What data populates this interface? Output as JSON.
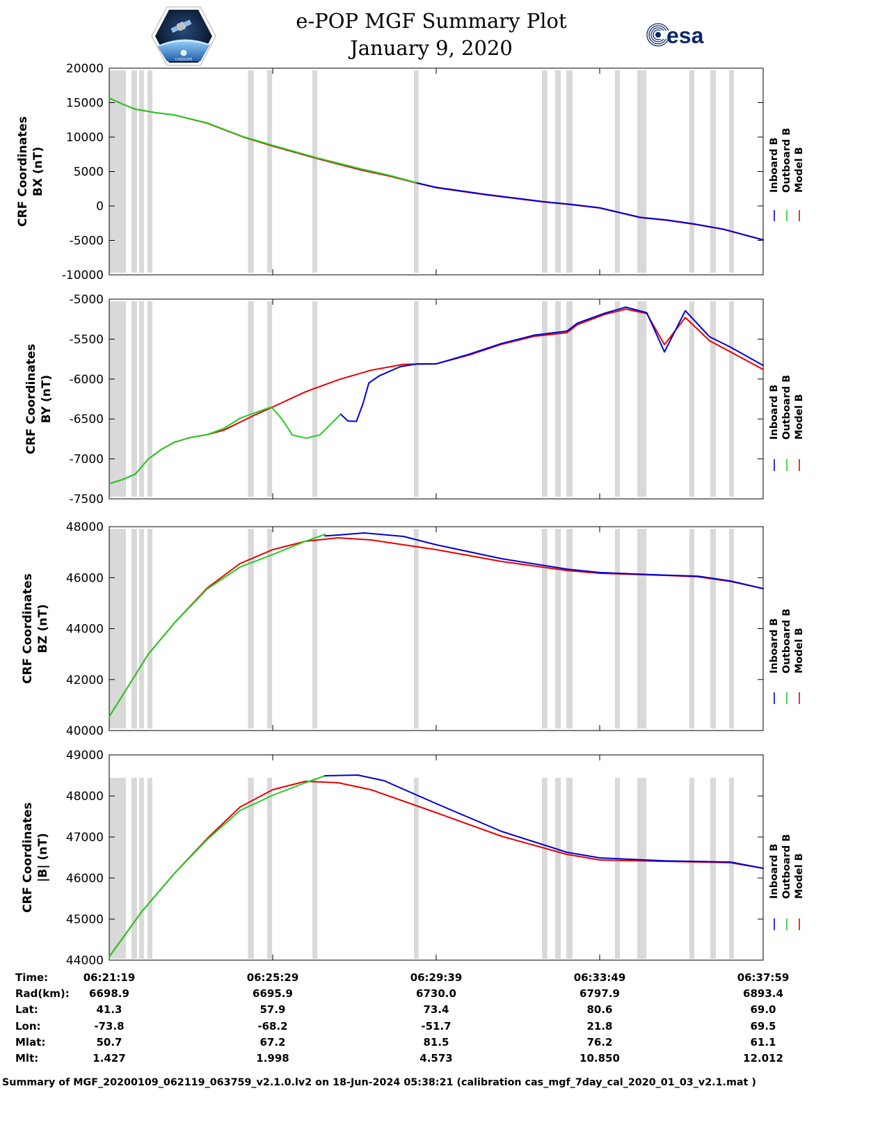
{
  "title": {
    "line1": "e-POP MGF Summary Plot",
    "line2": "January 9, 2020"
  },
  "logos": {
    "left": {
      "name": "cassiope-mission-patch",
      "lettering": "CASSIOPE"
    },
    "right": {
      "name": "esa-logo",
      "lettering": "esa"
    }
  },
  "colors": {
    "inboard": "#0000d4",
    "outboard": "#22cc22",
    "model": "#e80000",
    "gap": "#d9d9d9"
  },
  "chart_data": {
    "type": "line",
    "x_unit": "seconds since 06:21:19",
    "x_range": [
      0,
      1000
    ],
    "x_ticks": [
      0,
      250,
      500,
      750,
      1000
    ],
    "x_tick_labels": [
      "06:21:19",
      "06:25:29",
      "06:29:39",
      "06:33:49",
      "06:37:59"
    ],
    "legend": [
      {
        "key": "inboard",
        "label": "Inboard B"
      },
      {
        "key": "outboard",
        "label": "Outboard B"
      },
      {
        "key": "model",
        "label": "Model B"
      }
    ],
    "gaps": [
      [
        0,
        25.5
      ],
      [
        34,
        42.5
      ],
      [
        45.7,
        53
      ],
      [
        58.5,
        66
      ],
      [
        212,
        221
      ],
      [
        241.5,
        249
      ],
      [
        310.6,
        318
      ],
      [
        466,
        473
      ],
      [
        661.7,
        670
      ],
      [
        682,
        690.4
      ],
      [
        699,
        708.5
      ],
      [
        773.4,
        781
      ],
      [
        807.4,
        821.3
      ],
      [
        887,
        894.7
      ],
      [
        919,
        927.6
      ],
      [
        948,
        955.3
      ]
    ],
    "panels": [
      {
        "id": "bx",
        "ylabel": [
          "CRF Coordinates",
          "BX (nT)"
        ],
        "ylim": [
          -10000,
          20000
        ],
        "yticks": [
          -10000,
          -5000,
          0,
          5000,
          10000,
          15000,
          20000
        ],
        "series": {
          "model": [
            [
              0,
              15650
            ],
            [
              20,
              14800
            ],
            [
              40,
              14050
            ],
            [
              70,
              13550
            ],
            [
              100,
              13200
            ],
            [
              150,
              12000
            ],
            [
              205,
              10000
            ],
            [
              250,
              8700
            ],
            [
              317,
              6900
            ],
            [
              386,
              5200
            ],
            [
              430,
              4300
            ],
            [
              471,
              3300
            ],
            [
              500,
              2650
            ],
            [
              578,
              1600
            ],
            [
              663,
              600
            ],
            [
              705,
              200
            ],
            [
              750,
              -300
            ],
            [
              812,
              -1700
            ],
            [
              854,
              -2100
            ],
            [
              897,
              -2700
            ],
            [
              939,
              -3400
            ],
            [
              1000,
              -4950
            ]
          ],
          "outboard": [
            [
              0,
              15650
            ],
            [
              20,
              14800
            ],
            [
              40,
              14050
            ],
            [
              70,
              13550
            ],
            [
              100,
              13200
            ],
            [
              150,
              12050
            ],
            [
              205,
              10050
            ],
            [
              250,
              8800
            ],
            [
              317,
              7000
            ],
            [
              386,
              5350
            ],
            [
              430,
              4400
            ],
            [
              471,
              3350
            ]
          ],
          "inboard": [
            [
              471,
              3330
            ],
            [
              500,
              2700
            ],
            [
              578,
              1640
            ],
            [
              663,
              640
            ],
            [
              705,
              240
            ],
            [
              750,
              -260
            ],
            [
              812,
              -1660
            ],
            [
              854,
              -2060
            ],
            [
              897,
              -2660
            ],
            [
              939,
              -3360
            ],
            [
              1000,
              -4920
            ]
          ]
        }
      },
      {
        "id": "by",
        "ylabel": [
          "CRF Coordinates",
          "BY (nT)"
        ],
        "ylim": [
          -7500,
          -5000
        ],
        "yticks": [
          -7500,
          -7000,
          -6500,
          -6000,
          -5500,
          -5000
        ],
        "series": {
          "model": [
            [
              0,
              -7310
            ],
            [
              20,
              -7260
            ],
            [
              40,
              -7190
            ],
            [
              60,
              -7000
            ],
            [
              80,
              -6880
            ],
            [
              100,
              -6790
            ],
            [
              125,
              -6730
            ],
            [
              150,
              -6695
            ],
            [
              175,
              -6640
            ],
            [
              220,
              -6460
            ],
            [
              250,
              -6350
            ],
            [
              300,
              -6160
            ],
            [
              350,
              -6010
            ],
            [
              400,
              -5890
            ],
            [
              450,
              -5815
            ],
            [
              500,
              -5810
            ],
            [
              550,
              -5700
            ],
            [
              600,
              -5565
            ],
            [
              650,
              -5465
            ],
            [
              700,
              -5420
            ],
            [
              716,
              -5320
            ],
            [
              758,
              -5190
            ],
            [
              790,
              -5125
            ],
            [
              822,
              -5180
            ],
            [
              849,
              -5570
            ],
            [
              881,
              -5230
            ],
            [
              918,
              -5520
            ],
            [
              950,
              -5660
            ],
            [
              1000,
              -5880
            ]
          ],
          "outboard": [
            [
              0,
              -7310
            ],
            [
              20,
              -7260
            ],
            [
              40,
              -7190
            ],
            [
              60,
              -7000
            ],
            [
              80,
              -6880
            ],
            [
              100,
              -6790
            ],
            [
              125,
              -6730
            ],
            [
              150,
              -6695
            ],
            [
              175,
              -6620
            ],
            [
              200,
              -6490
            ],
            [
              227,
              -6410
            ],
            [
              248,
              -6350
            ],
            [
              264,
              -6500
            ],
            [
              280,
              -6700
            ],
            [
              301,
              -6740
            ],
            [
              322,
              -6700
            ],
            [
              338,
              -6570
            ],
            [
              354,
              -6440
            ]
          ],
          "inboard": [
            [
              354,
              -6440
            ],
            [
              365,
              -6525
            ],
            [
              378,
              -6530
            ],
            [
              388,
              -6310
            ],
            [
              397,
              -6050
            ],
            [
              413,
              -5960
            ],
            [
              445,
              -5845
            ],
            [
              471,
              -5810
            ],
            [
              500,
              -5810
            ],
            [
              550,
              -5690
            ],
            [
              600,
              -5555
            ],
            [
              650,
              -5450
            ],
            [
              700,
              -5400
            ],
            [
              716,
              -5300
            ],
            [
              758,
              -5175
            ],
            [
              790,
              -5100
            ],
            [
              822,
              -5170
            ],
            [
              849,
              -5660
            ],
            [
              881,
              -5145
            ],
            [
              918,
              -5470
            ],
            [
              950,
              -5600
            ],
            [
              1000,
              -5830
            ]
          ]
        }
      },
      {
        "id": "bz",
        "ylabel": [
          "CRF Coordinates",
          "BZ (nT)"
        ],
        "ylim": [
          40000,
          48000
        ],
        "yticks": [
          40000,
          42000,
          44000,
          46000,
          48000
        ],
        "series": {
          "model": [
            [
              0,
              40546
            ],
            [
              30,
              41775
            ],
            [
              60,
              43003
            ],
            [
              100,
              44232
            ],
            [
              150,
              45597
            ],
            [
              200,
              46553
            ],
            [
              250,
              47099
            ],
            [
              300,
              47427
            ],
            [
              350,
              47563
            ],
            [
              400,
              47481
            ],
            [
              500,
              47099
            ],
            [
              600,
              46635
            ],
            [
              700,
              46280
            ],
            [
              750,
              46171
            ],
            [
              850,
              46089
            ],
            [
              900,
              46034
            ],
            [
              950,
              45850
            ],
            [
              1000,
              45570
            ]
          ],
          "outboard": [
            [
              0,
              40546
            ],
            [
              30,
              41775
            ],
            [
              60,
              43003
            ],
            [
              100,
              44232
            ],
            [
              150,
              45560
            ],
            [
              200,
              46416
            ],
            [
              250,
              46908
            ],
            [
              300,
              47427
            ],
            [
              330,
              47700
            ]
          ],
          "inboard": [
            [
              330,
              47640
            ],
            [
              350,
              47672
            ],
            [
              390,
              47754
            ],
            [
              450,
              47618
            ],
            [
              500,
              47290
            ],
            [
              600,
              46744
            ],
            [
              700,
              46335
            ],
            [
              750,
              46200
            ],
            [
              850,
              46100
            ],
            [
              900,
              46060
            ],
            [
              950,
              45870
            ],
            [
              1000,
              45570
            ]
          ]
        }
      },
      {
        "id": "bmag",
        "ylabel": [
          "CRF Coordinates",
          "|B| (nT)"
        ],
        "ylim": [
          44000,
          49000
        ],
        "yticks": [
          44000,
          45000,
          46000,
          47000,
          48000,
          49000
        ],
        "series": {
          "model": [
            [
              0,
              44085
            ],
            [
              50,
              45186
            ],
            [
              100,
              46119
            ],
            [
              150,
              46966
            ],
            [
              200,
              47729
            ],
            [
              250,
              48153
            ],
            [
              300,
              48356
            ],
            [
              350,
              48322
            ],
            [
              400,
              48153
            ],
            [
              500,
              47593
            ],
            [
              600,
              47017
            ],
            [
              700,
              46576
            ],
            [
              750,
              46441
            ],
            [
              850,
              46407
            ],
            [
              950,
              46373
            ],
            [
              1000,
              46237
            ]
          ],
          "outboard": [
            [
              0,
              44085
            ],
            [
              50,
              45186
            ],
            [
              100,
              46119
            ],
            [
              150,
              46940
            ],
            [
              200,
              47644
            ],
            [
              250,
              48017
            ],
            [
              300,
              48322
            ],
            [
              330,
              48492
            ]
          ],
          "inboard": [
            [
              330,
              48492
            ],
            [
              380,
              48508
            ],
            [
              420,
              48373
            ],
            [
              500,
              47814
            ],
            [
              600,
              47135
            ],
            [
              700,
              46627
            ],
            [
              750,
              46492
            ],
            [
              850,
              46420
            ],
            [
              950,
              46390
            ],
            [
              1000,
              46237
            ]
          ]
        }
      }
    ]
  },
  "orbit_table": {
    "rows": [
      {
        "label": "Time:",
        "values": [
          "06:21:19",
          "06:25:29",
          "06:29:39",
          "06:33:49",
          "06:37:59"
        ]
      },
      {
        "label": "Rad(km):",
        "values": [
          "6698.9",
          "6695.9",
          "6730.0",
          "6797.9",
          "6893.4"
        ]
      },
      {
        "label": "Lat:",
        "values": [
          "41.3",
          "57.9",
          "73.4",
          "80.6",
          "69.0"
        ]
      },
      {
        "label": "Lon:",
        "values": [
          "-73.8",
          "-68.2",
          "-51.7",
          "21.8",
          "69.5"
        ]
      },
      {
        "label": "Mlat:",
        "values": [
          "50.7",
          "67.2",
          "81.5",
          "76.2",
          "61.1"
        ]
      },
      {
        "label": "Mlt:",
        "values": [
          "1.427",
          "1.998",
          "4.573",
          "10.850",
          "12.012"
        ]
      }
    ]
  },
  "footer": "Summary of MGF_20200109_062119_063759_v2.1.0.lv2 on 18-Jun-2024 05:38:21 (calibration cas_mgf_7day_cal_2020_01_03_v2.1.mat )"
}
